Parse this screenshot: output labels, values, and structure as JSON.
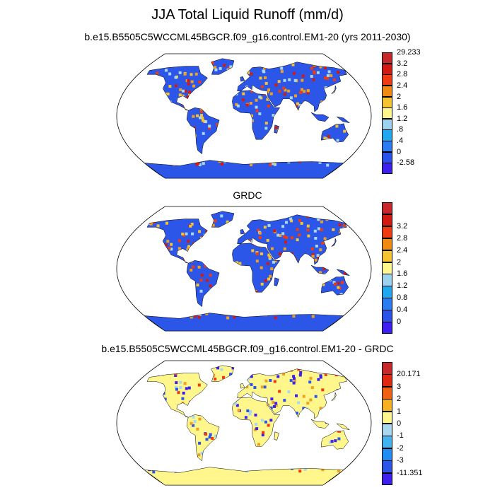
{
  "figure": {
    "title": "JJA Total Liquid Runoff (mm/d)"
  },
  "panels": [
    {
      "title": "b.e15.B5505C5WCCML45BGCR.f09_g16.control.EM1-20 (yrs 2011-2030)",
      "colorbar": {
        "colors": [
          "#3d1ff0",
          "#2852e8",
          "#2b7cf0",
          "#1ea8f0",
          "#9bd2f0",
          "#fff68c",
          "#f6c430",
          "#f08a10",
          "#f03b10",
          "#d21a10",
          "#c8282a"
        ],
        "labels": [
          "-2.58",
          "0",
          ".4",
          ".8",
          "1.2",
          "1.6",
          "2",
          "2.4",
          "2.8",
          "3.2",
          "29.233"
        ]
      },
      "fields": {
        "base": "#2c56e8",
        "highlight_colors": [
          "#f03b10",
          "#f0a020",
          "#a8d8f0",
          "#d21a10",
          "#f6c430"
        ]
      }
    },
    {
      "title": "GRDC",
      "colorbar": {
        "colors": [
          "#3d1ff0",
          "#2852e8",
          "#2b7cf0",
          "#1ea8f0",
          "#9bd2f0",
          "#fff68c",
          "#f6c430",
          "#f08a10",
          "#f03b10",
          "#d21a10",
          "#c8282a"
        ],
        "labels": [
          "0",
          "0.4",
          "0.8",
          "1.2",
          "1.6",
          "2",
          "2.4",
          "2.8",
          "3.2"
        ]
      },
      "fields": {
        "base": "#2c56e8",
        "highlight_colors": [
          "#f03b10",
          "#d21a10",
          "#f0a020",
          "#a8d8f0",
          "#f6c430"
        ]
      }
    },
    {
      "title": "b.e15.B5505C5WCCML45BGCR.f09_g16.control.EM1-20 - GRDC",
      "colorbar": {
        "colors": [
          "#3d1ff0",
          "#2c56e8",
          "#1e8cf0",
          "#3fb4f0",
          "#a8d8f0",
          "#fff68c",
          "#f6b020",
          "#f06010",
          "#e02810",
          "#c8282a"
        ],
        "labels": [
          "-11.351",
          "-3",
          "-2",
          "-1",
          "0",
          "1",
          "2",
          "3",
          "20.171"
        ]
      },
      "fields": {
        "base": "#fff68c",
        "highlight_colors": [
          "#a8d8f0",
          "#f0a020",
          "#f03b10",
          "#3d1ff0",
          "#2c56e8"
        ]
      }
    }
  ]
}
